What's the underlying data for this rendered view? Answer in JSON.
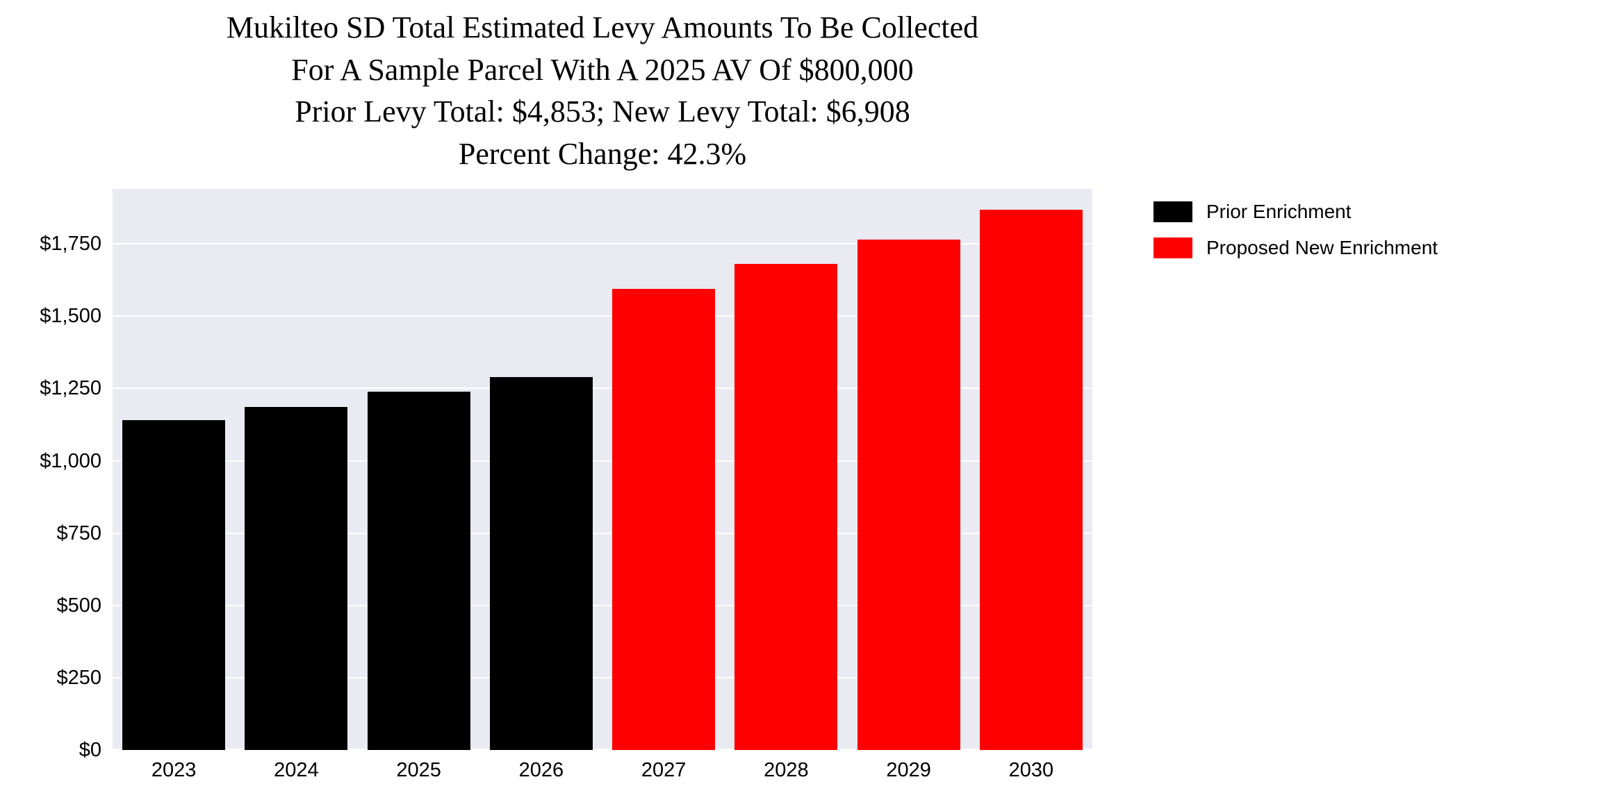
{
  "chart_data": {
    "type": "bar",
    "title_lines": [
      "Mukilteo SD Total Estimated Levy Amounts To Be Collected",
      "For A Sample Parcel With A 2025 AV Of $800,000",
      "Prior Levy Total:  $4,853; New Levy Total: $6,908",
      "Percent Change: 42.3%"
    ],
    "categories": [
      "2023",
      "2024",
      "2025",
      "2026",
      "2027",
      "2028",
      "2029",
      "2030"
    ],
    "series": [
      {
        "name": "Prior Enrichment",
        "color": "#000000",
        "values": [
          1140,
          1185,
          1238,
          1290,
          null,
          null,
          null,
          null
        ]
      },
      {
        "name": "Proposed New Enrichment",
        "color": "#ff0000",
        "values": [
          null,
          null,
          null,
          null,
          1595,
          1680,
          1765,
          1868
        ]
      }
    ],
    "totals": {
      "prior_levy_total": "$4,853",
      "new_levy_total": "$6,908",
      "percent_change": "42.3%"
    },
    "xlabel": "",
    "ylabel": "",
    "ylim": [
      0,
      1940
    ],
    "yticks": [
      0,
      250,
      500,
      750,
      1000,
      1250,
      1500,
      1750
    ],
    "ytick_labels": [
      "$0",
      "$250",
      "$500",
      "$750",
      "$1,000",
      "$1,250",
      "$1,500",
      "$1,750"
    ],
    "grid": true,
    "plot_bg": "#eaeaf2",
    "grid_color": "#ffffff",
    "legend_position": "outside-upper-right"
  }
}
